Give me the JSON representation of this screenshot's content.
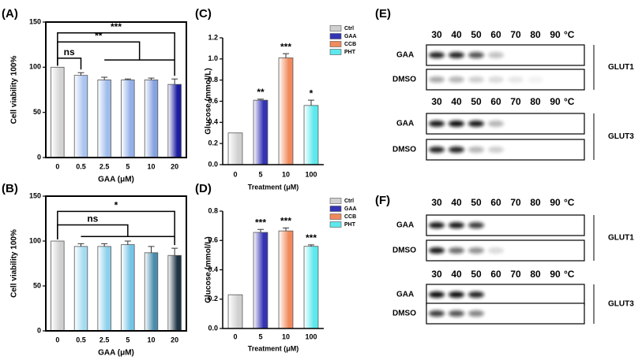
{
  "chart_data": [
    {
      "type": "bar",
      "panel_label": "(A)",
      "ylabel": "Cell viability 100%",
      "xlabel": "GAA (μM)",
      "categories": [
        "0",
        "0.5",
        "2.5",
        "5",
        "10",
        "20"
      ],
      "values": [
        100,
        91,
        86,
        86,
        86,
        81
      ],
      "errors": [
        0,
        3,
        3,
        1,
        2,
        6
      ],
      "colors": [
        "#d4d4d4",
        "#aac4f0",
        "#a0bcec",
        "#94b0e8",
        "#86a2e0",
        "#1c1ca0"
      ],
      "ylim": [
        0,
        150
      ],
      "yticks": [
        0,
        50,
        100,
        150
      ],
      "frame": true,
      "annotations": [
        "ns",
        "**",
        "***"
      ]
    },
    {
      "type": "bar",
      "panel_label": "(B)",
      "ylabel": "Cell viability 100%",
      "xlabel": "GAA  (μM)",
      "categories": [
        "0",
        "0.5",
        "2.5",
        "5",
        "10",
        "20"
      ],
      "values": [
        100,
        94,
        94,
        96,
        87,
        84
      ],
      "errors": [
        0,
        3,
        3,
        4,
        7,
        8
      ],
      "colors": [
        "#d0d0d0",
        "#a4dcf0",
        "#8cd0ec",
        "#74c4e8",
        "#4a8cac",
        "#1e3444"
      ],
      "ylim": [
        0,
        150
      ],
      "yticks": [
        0,
        50,
        100,
        150
      ],
      "frame": true,
      "annotations": [
        "ns",
        "*"
      ]
    },
    {
      "type": "bar",
      "panel_label": "(C)",
      "ylabel": "Glucose (mmol/L)",
      "xlabel": "Treatment (μM)",
      "categories": [
        "0",
        "5",
        "10",
        "100"
      ],
      "values": [
        0.3,
        0.61,
        1.01,
        0.56
      ],
      "errors": [
        0,
        0.01,
        0.04,
        0.05
      ],
      "value_annotations": [
        null,
        "**",
        "***",
        "*"
      ],
      "series_names": [
        "Ctrl",
        "GAA",
        "CCB",
        "PHT"
      ],
      "colors": [
        "#d0d0d0",
        "#3434b4",
        "#f08a5c",
        "#5ce8ec"
      ],
      "ylim": [
        0,
        1.2
      ],
      "yticks": [
        {
          "value": 0,
          "label": "0.0"
        },
        0.2,
        0.4,
        0.6,
        0.8,
        {
          "value": 1,
          "label": "1.0"
        },
        1.2
      ],
      "frame": false,
      "legend": "upper right"
    },
    {
      "type": "bar",
      "panel_label": "(D)",
      "ylabel": "Glucose (mmol/L)",
      "xlabel": "Treatment (μM)",
      "categories": [
        "0",
        "5",
        "10",
        "100"
      ],
      "values": [
        0.23,
        0.655,
        0.665,
        0.56
      ],
      "errors": [
        0,
        0.02,
        0.02,
        0.01
      ],
      "value_annotations": [
        null,
        "***",
        "***",
        "***"
      ],
      "series_names": [
        "Ctrl",
        "GAA",
        "CCB",
        "PHT"
      ],
      "colors": [
        "#d0d0d0",
        "#3434b4",
        "#f08a5c",
        "#5ce8ec"
      ],
      "ylim": [
        0,
        0.8
      ],
      "yticks": [
        {
          "value": 0,
          "label": "0.0"
        },
        0.2,
        0.4,
        0.6,
        0.8
      ],
      "frame": false,
      "legend": "upper right"
    }
  ],
  "blots": [
    {
      "panel_label": "(E)",
      "panels": [
        {
          "temps": [
            30,
            40,
            50,
            60,
            70,
            80,
            90
          ],
          "unit": "°C",
          "rows": [
            "GAA",
            "DMSO"
          ],
          "target": "GLUT1"
        },
        {
          "temps": [
            30,
            40,
            50,
            60,
            70,
            80,
            90
          ],
          "unit": "°C",
          "rows": [
            "GAA",
            "DMSO"
          ],
          "target": "GLUT3"
        }
      ]
    },
    {
      "panel_label": "(F)",
      "panels": [
        {
          "temps": [
            30,
            40,
            50,
            60,
            70,
            80,
            90
          ],
          "unit": "°C",
          "rows": [
            "GAA",
            "DMSO"
          ],
          "target": "GLUT1"
        },
        {
          "temps": [
            30,
            40,
            50,
            60,
            70,
            80,
            90
          ],
          "unit": "°C",
          "rows": [
            "GAA",
            "DMSO"
          ],
          "target": "GLUT3"
        }
      ]
    }
  ]
}
